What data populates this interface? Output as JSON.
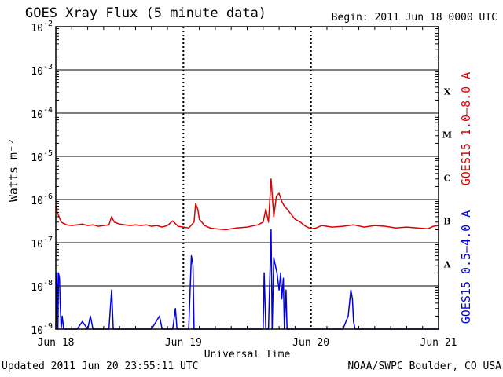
{
  "title": "GOES Xray Flux (5 minute data)",
  "begin_label": "Begin:  2011 Jun 18 0000 UTC",
  "updated_label": "Updated 2011 Jun 20 23:55:11 UTC",
  "credit_label": "NOAA/SWPC Boulder, CO USA",
  "colors": {
    "long": "#e00000",
    "short": "#0000e0",
    "axis": "#000000"
  },
  "chart_data": {
    "type": "line",
    "title": "GOES Xray Flux (5 minute data)",
    "xlabel": "Universal Time",
    "ylabel": "Watts m⁻²",
    "yscale": "log",
    "ylim": [
      1e-09,
      0.01
    ],
    "xlim": [
      0,
      72
    ],
    "x_unit": "hours since 2011 Jun 18 0000 UTC",
    "y_ticks": [
      {
        "value": 0.01,
        "base": "10",
        "exp": "-2"
      },
      {
        "value": 0.001,
        "base": "10",
        "exp": "-3"
      },
      {
        "value": 0.0001,
        "base": "10",
        "exp": "-4"
      },
      {
        "value": 1e-05,
        "base": "10",
        "exp": "-5"
      },
      {
        "value": 1e-06,
        "base": "10",
        "exp": "-6"
      },
      {
        "value": 1e-07,
        "base": "10",
        "exp": "-7"
      },
      {
        "value": 1e-08,
        "base": "10",
        "exp": "-8"
      },
      {
        "value": 1e-09,
        "base": "10",
        "exp": "-9"
      }
    ],
    "x_ticks": [
      {
        "x": 0,
        "label": "Jun 18"
      },
      {
        "x": 24,
        "label": "Jun 19"
      },
      {
        "x": 48,
        "label": "Jun 20"
      },
      {
        "x": 72,
        "label": "Jun 21"
      }
    ],
    "flare_classes": [
      {
        "label": "X",
        "y": 0.000316
      },
      {
        "label": "M",
        "y": 3.16e-05
      },
      {
        "label": "C",
        "y": 3.16e-06
      },
      {
        "label": "B",
        "y": 3.16e-07
      },
      {
        "label": "A",
        "y": 3.16e-08
      }
    ],
    "grid": true,
    "series": [
      {
        "name": "GOES15 1.0–8.0 A",
        "color": "#e00000",
        "x": [
          0,
          0.3,
          0.6,
          1.0,
          1.5,
          2.0,
          3.0,
          4.0,
          5.0,
          6.0,
          7.0,
          8.0,
          9.0,
          10.0,
          10.5,
          11.0,
          12.0,
          13.0,
          14.0,
          15.0,
          16.0,
          17.0,
          18.0,
          19.0,
          20.0,
          21.0,
          22.0,
          23.0,
          24.0,
          25.0,
          26.0,
          26.3,
          26.7,
          27.0,
          28.0,
          29.0,
          30.0,
          32.0,
          34.0,
          36.0,
          38.0,
          39.0,
          39.5,
          40.0,
          40.5,
          41.0,
          41.5,
          42.0,
          42.5,
          43.0,
          43.5,
          44.0,
          45.0,
          46.0,
          47.0,
          48.0,
          49.0,
          50.0,
          52.0,
          54.0,
          56.0,
          58.0,
          60.0,
          62.0,
          64.0,
          66.0,
          68.0,
          70.0,
          71.0,
          72.0
        ],
        "values": [
          7e-07,
          5e-07,
          4e-07,
          3e-07,
          2.8e-07,
          2.6e-07,
          2.5e-07,
          2.6e-07,
          2.7e-07,
          2.5e-07,
          2.6e-07,
          2.4e-07,
          2.5e-07,
          2.6e-07,
          4e-07,
          3e-07,
          2.7e-07,
          2.6e-07,
          2.5e-07,
          2.6e-07,
          2.5e-07,
          2.6e-07,
          2.4e-07,
          2.5e-07,
          2.3e-07,
          2.5e-07,
          3.2e-07,
          2.4e-07,
          2.3e-07,
          2.2e-07,
          3e-07,
          8e-07,
          6e-07,
          3.5e-07,
          2.5e-07,
          2.2e-07,
          2.1e-07,
          2e-07,
          2.2e-07,
          2.3e-07,
          2.6e-07,
          3e-07,
          6e-07,
          3e-07,
          3e-06,
          4e-07,
          1.2e-06,
          1.4e-06,
          9e-07,
          7e-07,
          6e-07,
          5e-07,
          3.5e-07,
          3e-07,
          2.4e-07,
          2.1e-07,
          2.2e-07,
          2.5e-07,
          2.3e-07,
          2.4e-07,
          2.6e-07,
          2.3e-07,
          2.5e-07,
          2.4e-07,
          2.2e-07,
          2.3e-07,
          2.2e-07,
          2.1e-07,
          2.4e-07,
          2.5e-07
        ]
      },
      {
        "name": "GOES15 0.5–4.0 A",
        "color": "#0000e0",
        "x": [
          0,
          0.2,
          0.4,
          0.5,
          0.7,
          0.8,
          1.0,
          1.2,
          1.5,
          2,
          3,
          4,
          5,
          6,
          6.5,
          7,
          8,
          10,
          10.5,
          10.8,
          11,
          11.5,
          12,
          14,
          15,
          18,
          19.5,
          20,
          21,
          22,
          22.5,
          22.8,
          23,
          24,
          25,
          25.5,
          25.8,
          26,
          27,
          28,
          30,
          32,
          36,
          38,
          39,
          39.2,
          39.5,
          40,
          40.5,
          40.7,
          41,
          41.3,
          41.6,
          42,
          42.3,
          42.5,
          42.8,
          43,
          43.3,
          43.5,
          44,
          46,
          48,
          54,
          55,
          55.5,
          55.8,
          56,
          56.3,
          57,
          60,
          66,
          72
        ],
        "values": [
          1e-09,
          2e-08,
          1e-09,
          2e-08,
          1.5e-08,
          5e-09,
          1e-09,
          2e-09,
          1e-09,
          1e-09,
          1e-09,
          1e-09,
          1.5e-09,
          1e-09,
          2e-09,
          1e-09,
          1e-09,
          1e-09,
          8e-09,
          1e-09,
          1e-09,
          1e-09,
          1e-09,
          1e-09,
          1e-09,
          1e-09,
          2e-09,
          1e-09,
          1e-09,
          1e-09,
          3e-09,
          1e-09,
          1e-09,
          1e-09,
          1e-09,
          5e-08,
          3e-08,
          1e-09,
          1e-09,
          1e-09,
          1e-09,
          1e-09,
          1e-09,
          1e-09,
          1e-09,
          2e-08,
          1e-09,
          1e-09,
          2e-07,
          1e-09,
          4.5e-08,
          3e-08,
          2e-08,
          8e-09,
          2e-08,
          5e-09,
          1.5e-08,
          1e-09,
          8e-09,
          1e-09,
          1e-09,
          1e-09,
          1e-09,
          1e-09,
          2e-09,
          8e-09,
          5e-09,
          1.5e-09,
          1e-09,
          1e-09,
          1e-09,
          1e-09,
          1e-09
        ]
      }
    ]
  }
}
